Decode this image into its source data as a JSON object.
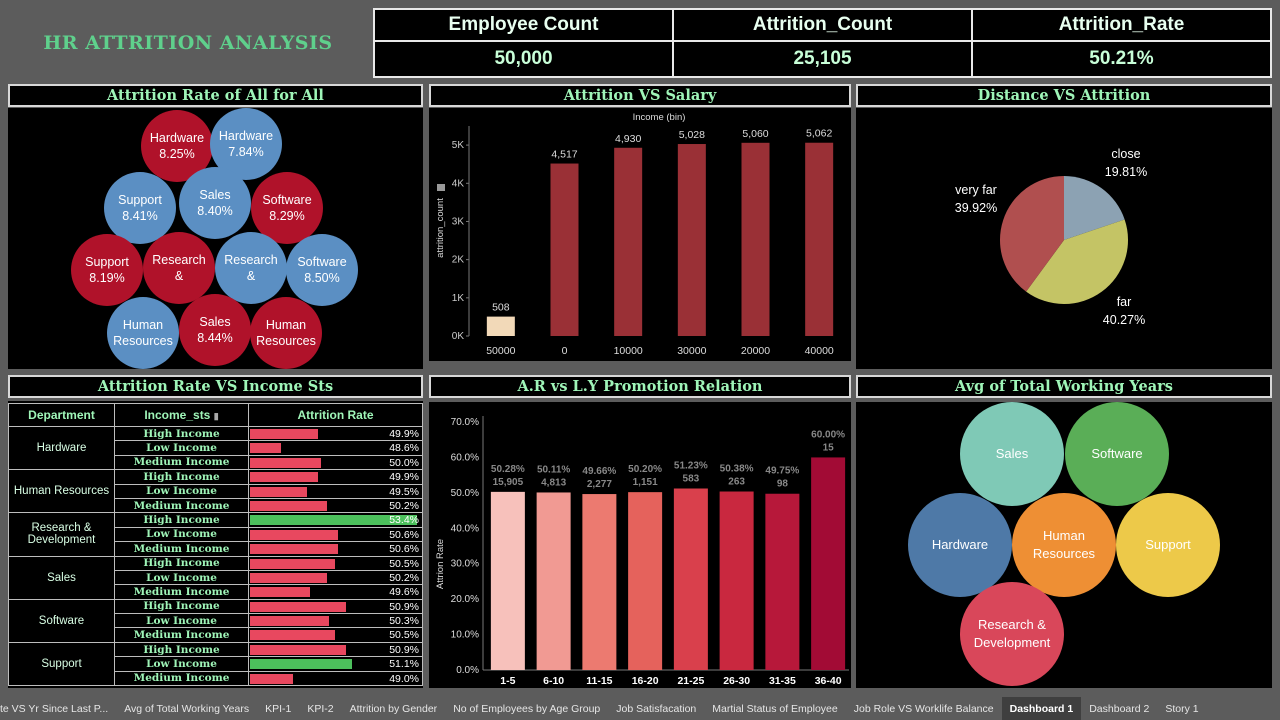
{
  "dashboard_title": "HR ATTRITION ANALYSIS",
  "kpis": [
    {
      "label": "Employee Count",
      "value": "50,000"
    },
    {
      "label": "Attrition_Count",
      "value": "25,105"
    },
    {
      "label": "Attrition_Rate",
      "value": "50.21%"
    }
  ],
  "panels": {
    "bubble1_title": "Attrition Rate of All for All",
    "salary_title": "Attrition VS Salary",
    "distance_title": "Distance VS Attrition",
    "table_title": "Attrition Rate VS Income Sts",
    "promotion_title": "A.R vs L.Y  Promotion Relation",
    "working_years_title": "Avg of Total Working Years"
  },
  "bubbles_all": [
    {
      "name": "Hardware",
      "rate": "8.25%",
      "color": "#b0122a"
    },
    {
      "name": "Hardware",
      "rate": "7.84%",
      "color": "#5b8fc3"
    },
    {
      "name": "Support",
      "rate": "8.41%",
      "color": "#5b8fc3"
    },
    {
      "name": "Sales",
      "rate": "8.40%",
      "color": "#5b8fc3"
    },
    {
      "name": "Software",
      "rate": "8.29%",
      "color": "#b0122a"
    },
    {
      "name": "Support",
      "rate": "8.19%",
      "color": "#b0122a"
    },
    {
      "name": "Research",
      "rate": "&",
      "color": "#b0122a"
    },
    {
      "name": "Research",
      "rate": "&",
      "color": "#5b8fc3"
    },
    {
      "name": "Software",
      "rate": "8.50%",
      "color": "#5b8fc3"
    },
    {
      "name": "Human",
      "rate": "Resources",
      "color": "#5b8fc3"
    },
    {
      "name": "Sales",
      "rate": "8.44%",
      "color": "#b0122a"
    },
    {
      "name": "Human",
      "rate": "Resources",
      "color": "#b0122a"
    }
  ],
  "chart_data": [
    {
      "type": "bar",
      "title": "Attrition VS Salary",
      "xlabel": "Income (bin)",
      "ylabel": "attrition_count",
      "categories": [
        "50000",
        "0",
        "10000",
        "30000",
        "20000",
        "40000"
      ],
      "values": [
        508,
        4517,
        4930,
        5028,
        5060,
        5062
      ],
      "value_labels": [
        "508",
        "4,517",
        "4,930",
        "5,028",
        "5,060",
        "5,062"
      ],
      "yticks": [
        "0K",
        "1K",
        "2K",
        "3K",
        "4K",
        "5K"
      ],
      "ylim": [
        0,
        5500
      ],
      "colors": [
        "#f2d9b8",
        "#9a3036",
        "#9a3036",
        "#9a3036",
        "#9a3036",
        "#9a3036"
      ]
    },
    {
      "type": "pie",
      "title": "Distance VS Attrition",
      "labels": [
        "close",
        "far",
        "very far"
      ],
      "values": [
        19.81,
        40.27,
        39.92
      ],
      "value_labels": [
        "19.81%",
        "40.27%",
        "39.92%"
      ],
      "colors": [
        "#8ca2b3",
        "#c4c465",
        "#b04f4f"
      ]
    },
    {
      "type": "bar",
      "title": "A.R vs L.Y  Promotion Relation",
      "ylabel": "Attrion Rate",
      "categories": [
        "1-5",
        "6-10",
        "11-15",
        "16-20",
        "21-25",
        "26-30",
        "31-35",
        "36-40"
      ],
      "values": [
        50.28,
        50.11,
        49.66,
        50.2,
        51.23,
        50.38,
        49.75,
        60.0
      ],
      "value_labels": [
        "50.28%",
        "50.11%",
        "49.66%",
        "50.20%",
        "51.23%",
        "50.38%",
        "49.75%",
        "60.00%"
      ],
      "counts": [
        "15,905",
        "4,813",
        "2,277",
        "1,151",
        "583",
        "263",
        "98",
        "15"
      ],
      "yticks": [
        "0.0%",
        "10.0%",
        "20.0%",
        "30.0%",
        "40.0%",
        "50.0%",
        "60.0%",
        "70.0%"
      ],
      "ylim": [
        0,
        70
      ],
      "colors": [
        "#f7c1bb",
        "#f19a93",
        "#ec7a70",
        "#e5625c",
        "#d9404c",
        "#c9283f",
        "#b7183a",
        "#a20b35"
      ]
    }
  ],
  "income_table": {
    "headers": [
      "Department",
      "Income_sts",
      "Attrition Rate"
    ],
    "departments": [
      {
        "name": "Hardware",
        "rows": [
          {
            "sts": "High Income",
            "rate": 49.9,
            "label": "49.9%",
            "color": "#e8485f"
          },
          {
            "sts": "Low Income",
            "rate": 48.6,
            "label": "48.6%",
            "color": "#e8485f"
          },
          {
            "sts": "Medium Income",
            "rate": 50.0,
            "label": "50.0%",
            "color": "#e8485f"
          }
        ]
      },
      {
        "name": "Human Resources",
        "rows": [
          {
            "sts": "High Income",
            "rate": 49.9,
            "label": "49.9%",
            "color": "#e8485f"
          },
          {
            "sts": "Low Income",
            "rate": 49.5,
            "label": "49.5%",
            "color": "#e8485f"
          },
          {
            "sts": "Medium Income",
            "rate": 50.2,
            "label": "50.2%",
            "color": "#e8485f"
          }
        ]
      },
      {
        "name": "Research & Development",
        "rows": [
          {
            "sts": "High Income",
            "rate": 53.4,
            "label": "53.4%",
            "color": "#4cc05c"
          },
          {
            "sts": "Low Income",
            "rate": 50.6,
            "label": "50.6%",
            "color": "#e8485f"
          },
          {
            "sts": "Medium Income",
            "rate": 50.6,
            "label": "50.6%",
            "color": "#e8485f"
          }
        ]
      },
      {
        "name": "Sales",
        "rows": [
          {
            "sts": "High Income",
            "rate": 50.5,
            "label": "50.5%",
            "color": "#e8485f"
          },
          {
            "sts": "Low Income",
            "rate": 50.2,
            "label": "50.2%",
            "color": "#e8485f"
          },
          {
            "sts": "Medium Income",
            "rate": 49.6,
            "label": "49.6%",
            "color": "#e8485f"
          }
        ]
      },
      {
        "name": "Software",
        "rows": [
          {
            "sts": "High Income",
            "rate": 50.9,
            "label": "50.9%",
            "color": "#e8485f"
          },
          {
            "sts": "Low Income",
            "rate": 50.3,
            "label": "50.3%",
            "color": "#e8485f"
          },
          {
            "sts": "Medium Income",
            "rate": 50.5,
            "label": "50.5%",
            "color": "#e8485f"
          }
        ]
      },
      {
        "name": "Support",
        "rows": [
          {
            "sts": "High Income",
            "rate": 50.9,
            "label": "50.9%",
            "color": "#e8485f"
          },
          {
            "sts": "Low Income",
            "rate": 51.1,
            "label": "51.1%",
            "color": "#4cc05c"
          },
          {
            "sts": "Medium Income",
            "rate": 49.0,
            "label": "49.0%",
            "color": "#e8485f"
          }
        ]
      }
    ]
  },
  "working_years_bubbles": [
    {
      "name": "Sales",
      "color": "#7fc9b6"
    },
    {
      "name": "Software",
      "color": "#5aae57"
    },
    {
      "name": "Hardware",
      "color": "#4e79a7"
    },
    {
      "name": "Human Resources",
      "color": "#ee8f34"
    },
    {
      "name": "Support",
      "color": "#edc949"
    },
    {
      "name": "Research & Development",
      "color": "#d9475a"
    }
  ],
  "tabs": [
    {
      "label": "te VS Yr Since Last P...",
      "active": false
    },
    {
      "label": "Avg of Total Working Years",
      "active": false
    },
    {
      "label": "KPI-1",
      "active": false
    },
    {
      "label": "KPI-2",
      "active": false
    },
    {
      "label": "Attrition by Gender",
      "active": false
    },
    {
      "label": "No of Employees by Age Group",
      "active": false
    },
    {
      "label": "Job Satisfacation",
      "active": false
    },
    {
      "label": "Martial Status of Employee",
      "active": false
    },
    {
      "label": "Job Role VS Worklife Balance",
      "active": false
    },
    {
      "label": "Dashboard 1",
      "active": true
    },
    {
      "label": "Dashboard 2",
      "active": false
    },
    {
      "label": "Story 1",
      "active": false
    }
  ]
}
